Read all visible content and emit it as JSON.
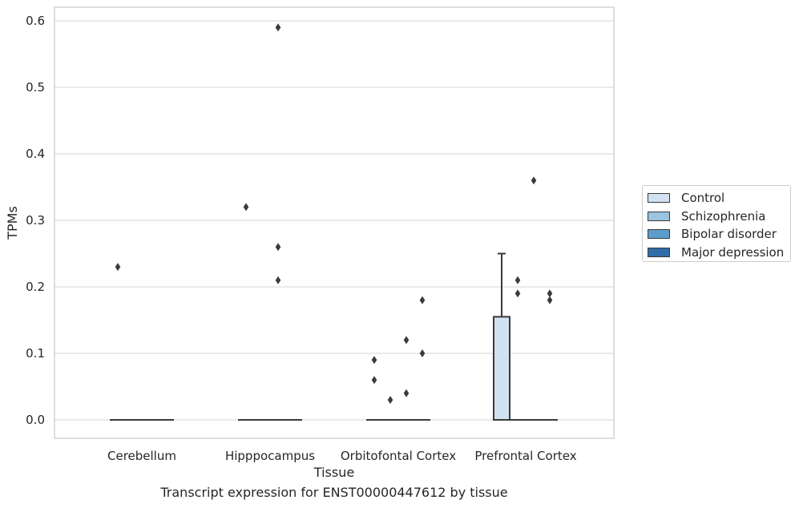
{
  "caption": "Transcript expression for ENST00000447612 by tissue",
  "chart_data": {
    "type": "box",
    "xlabel": "Tissue",
    "ylabel": "TPMs",
    "ylim": [
      -0.028,
      0.62
    ],
    "yticks": [
      "0.0",
      "0.1",
      "0.2",
      "0.3",
      "0.4",
      "0.5",
      "0.6"
    ],
    "grid": "horizontal",
    "legend_position": "right",
    "categories": [
      "Cerebellum",
      "Hipppocampus",
      "Orbitofontal Cortex",
      "Prefrontal Cortex"
    ],
    "series": [
      {
        "name": "Control",
        "color": "#d2e2f2",
        "boxes": [
          {
            "category": "Cerebellum",
            "q1": 0,
            "median": 0,
            "q3": 0,
            "whisker_low": 0,
            "whisker_high": 0,
            "outliers": [
              0.23
            ]
          },
          {
            "category": "Hipppocampus",
            "q1": 0,
            "median": 0,
            "q3": 0,
            "whisker_low": 0,
            "whisker_high": 0,
            "outliers": [
              0.32
            ]
          },
          {
            "category": "Orbitofontal Cortex",
            "q1": 0,
            "median": 0,
            "q3": 0,
            "whisker_low": 0,
            "whisker_high": 0,
            "outliers": [
              0.09,
              0.06
            ]
          },
          {
            "category": "Prefrontal Cortex",
            "q1": 0,
            "median": 0,
            "q3": 0.155,
            "whisker_low": 0,
            "whisker_high": 0.25,
            "outliers": []
          }
        ]
      },
      {
        "name": "Schizophrenia",
        "color": "#9ac4e0",
        "boxes": [
          {
            "category": "Cerebellum",
            "q1": 0,
            "median": 0,
            "q3": 0,
            "whisker_low": 0,
            "whisker_high": 0,
            "outliers": []
          },
          {
            "category": "Hipppocampus",
            "q1": 0,
            "median": 0,
            "q3": 0,
            "whisker_low": 0,
            "whisker_high": 0,
            "outliers": []
          },
          {
            "category": "Orbitofontal Cortex",
            "q1": 0,
            "median": 0,
            "q3": 0,
            "whisker_low": 0,
            "whisker_high": 0,
            "outliers": [
              0.03
            ]
          },
          {
            "category": "Prefrontal Cortex",
            "q1": 0,
            "median": 0,
            "q3": 0,
            "whisker_low": 0,
            "whisker_high": 0,
            "outliers": [
              0.21,
              0.19
            ]
          }
        ]
      },
      {
        "name": "Bipolar disorder",
        "color": "#5c9dcb",
        "boxes": [
          {
            "category": "Cerebellum",
            "q1": 0,
            "median": 0,
            "q3": 0,
            "whisker_low": 0,
            "whisker_high": 0,
            "outliers": []
          },
          {
            "category": "Hipppocampus",
            "q1": 0,
            "median": 0,
            "q3": 0,
            "whisker_low": 0,
            "whisker_high": 0,
            "outliers": [
              0.59,
              0.26,
              0.21
            ]
          },
          {
            "category": "Orbitofontal Cortex",
            "q1": 0,
            "median": 0,
            "q3": 0,
            "whisker_low": 0,
            "whisker_high": 0,
            "outliers": [
              0.12,
              0.04
            ]
          },
          {
            "category": "Prefrontal Cortex",
            "q1": 0,
            "median": 0,
            "q3": 0,
            "whisker_low": 0,
            "whisker_high": 0,
            "outliers": [
              0.36
            ]
          }
        ]
      },
      {
        "name": "Major depression",
        "color": "#2f6da8",
        "boxes": [
          {
            "category": "Cerebellum",
            "q1": 0,
            "median": 0,
            "q3": 0,
            "whisker_low": 0,
            "whisker_high": 0,
            "outliers": []
          },
          {
            "category": "Hipppocampus",
            "q1": 0,
            "median": 0,
            "q3": 0,
            "whisker_low": 0,
            "whisker_high": 0,
            "outliers": []
          },
          {
            "category": "Orbitofontal Cortex",
            "q1": 0,
            "median": 0,
            "q3": 0,
            "whisker_low": 0,
            "whisker_high": 0,
            "outliers": [
              0.18,
              0.1
            ]
          },
          {
            "category": "Prefrontal Cortex",
            "q1": 0,
            "median": 0,
            "q3": 0,
            "whisker_low": 0,
            "whisker_high": 0,
            "outliers": [
              0.19,
              0.18
            ]
          }
        ]
      }
    ]
  }
}
